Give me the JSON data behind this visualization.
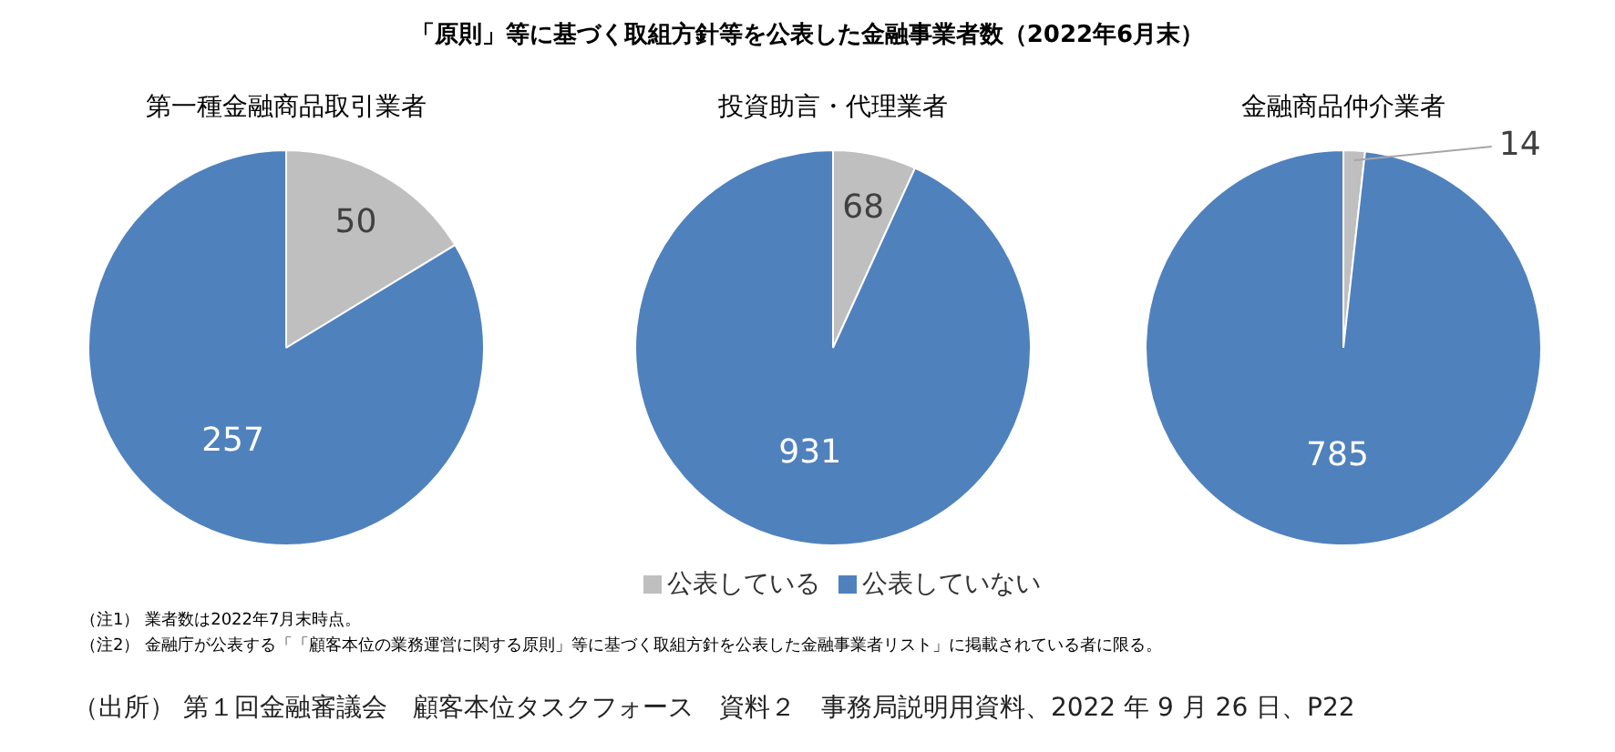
{
  "chart_data": [
    {
      "type": "pie",
      "title": "第一種金融商品取引業者",
      "categories": [
        null,
        null
      ],
      "values": [
        50,
        257
      ],
      "colors": [
        "#bfbfbf",
        "#4f81bd"
      ],
      "data_labels": true,
      "annotations": [
        "「原則」等に基づく取組方針等を公表した金融事業者数（2022年6月末）",
        "（注1） 業者数は2022年7月末時点。",
        "（注2） 金融庁が公表する「「顧客本位の業務運営に関する原則」等に基づく取組方針を公表した金融事業者リスト」に掲載されている者に限る。",
        "（出所） 第１回金融審議会　顧客本位タスクフォース　資料２　事務局説明用資料、2022 年 9 月 26 日、P22"
      ]
    },
    {
      "type": "pie",
      "title": "投資助言・代理業者",
      "categories": [
        "公表している",
        "公表していない"
      ],
      "values": [
        68,
        931
      ],
      "colors": [
        "#bfbfbf",
        "#4f81bd"
      ],
      "data_labels": true,
      "legend": "bottom"
    },
    {
      "type": "pie",
      "title": "金融商品仲介業者",
      "categories": [
        null,
        null
      ],
      "values": [
        14,
        785
      ],
      "colors": [
        "#bfbfbf",
        "#4f81bd"
      ],
      "data_labels": true
    }
  ]
}
